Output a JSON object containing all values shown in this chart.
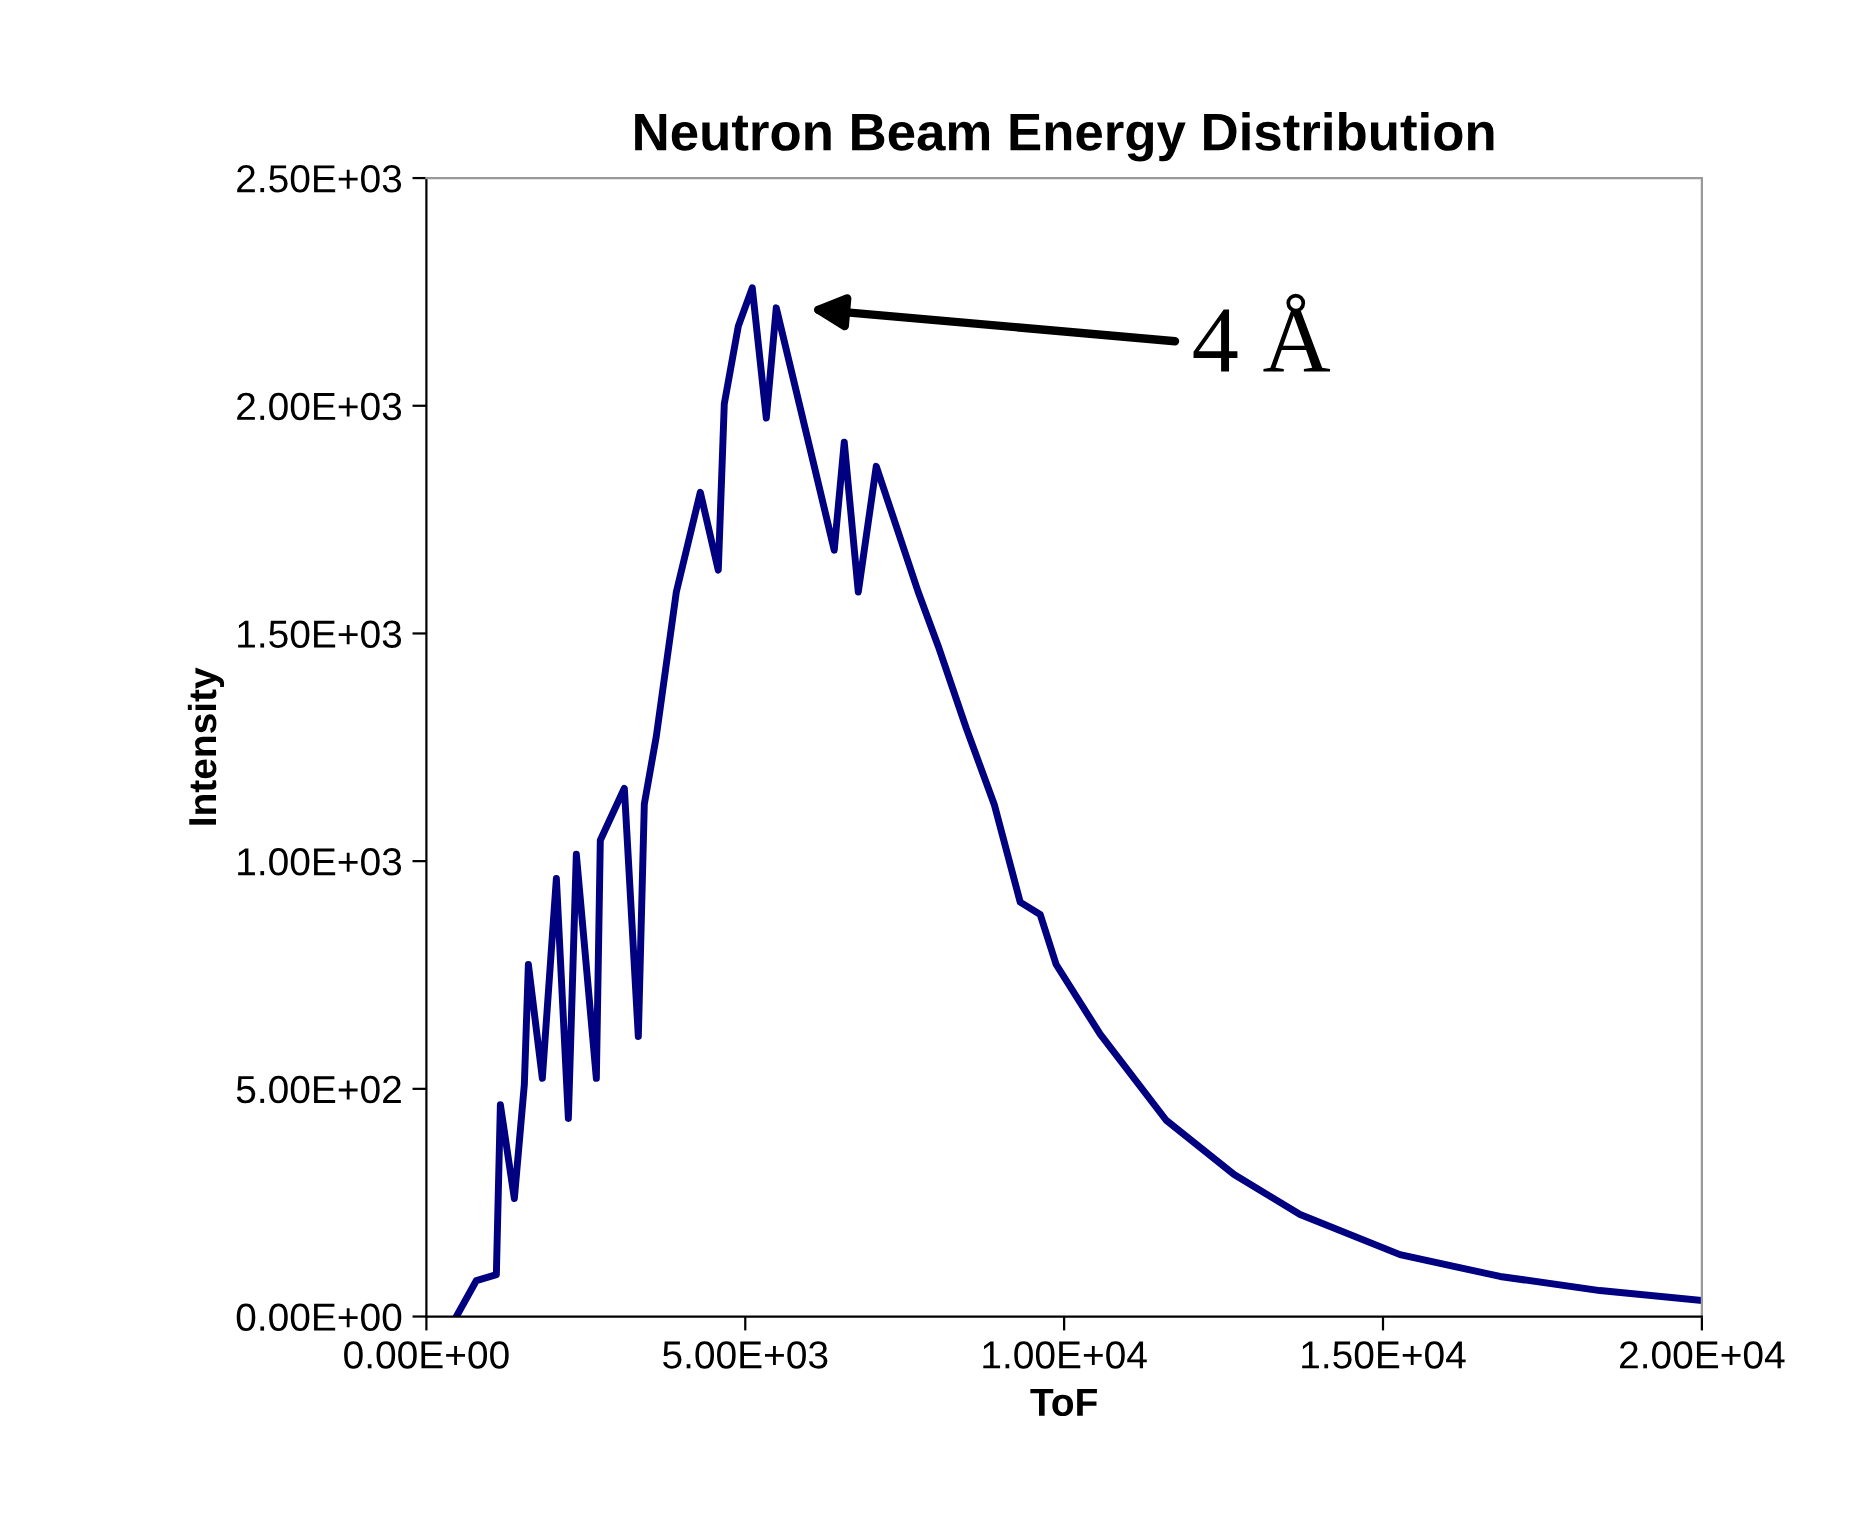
{
  "chart_data": {
    "type": "line",
    "title": "Neutron Beam Energy Distribution",
    "xlabel": "ToF",
    "ylabel": "Intensity",
    "x": [
      470,
      784,
      1097,
      1160,
      1379,
      1536,
      1599,
      1818,
      2038,
      2226,
      2351,
      2665,
      2727,
      3104,
      3323,
      3417,
      3605,
      3919,
      4295,
      4577,
      4671,
      4891,
      5110,
      5330,
      5486,
      6082,
      6395,
      6552,
      6772,
      7054,
      7712,
      8026,
      8465,
      8903,
      9311,
      9624,
      9875,
      10565,
      11600,
      12665,
      13700,
      15267,
      16835,
      18402,
      20000
    ],
    "series": [
      {
        "color": "#000080",
        "values": [
          0,
          79,
          92,
          465,
          259,
          510,
          773,
          523,
          962,
          435,
          1015,
          523,
          1046,
          1160,
          615,
          1125,
          1274,
          1591,
          1810,
          1639,
          2004,
          2175,
          2259,
          1973,
          2215,
          1867,
          1683,
          1920,
          1591,
          1867,
          1591,
          1472,
          1292,
          1125,
          910,
          883,
          773,
          620,
          431,
          312,
          224,
          136,
          88,
          57,
          35
        ]
      }
    ],
    "xlim": [
      0,
      20000
    ],
    "ylim": [
      0,
      2500
    ],
    "xticks": [
      {
        "value": 0,
        "label": "0.00E+00"
      },
      {
        "value": 5000,
        "label": "5.00E+03"
      },
      {
        "value": 10000,
        "label": "1.00E+04"
      },
      {
        "value": 15000,
        "label": "1.50E+04"
      },
      {
        "value": 20000,
        "label": "2.00E+04"
      }
    ],
    "yticks": [
      {
        "value": 0,
        "label": "0.00E+00"
      },
      {
        "value": 500,
        "label": "5.00E+02"
      },
      {
        "value": 1000,
        "label": "1.00E+03"
      },
      {
        "value": 1500,
        "label": "1.50E+03"
      },
      {
        "value": 2000,
        "label": "2.00E+03"
      },
      {
        "value": 2500,
        "label": "2.50E+03"
      }
    ],
    "annotations": [
      "4 Å"
    ],
    "grid": false,
    "marker": "none",
    "line_style": "solid"
  }
}
